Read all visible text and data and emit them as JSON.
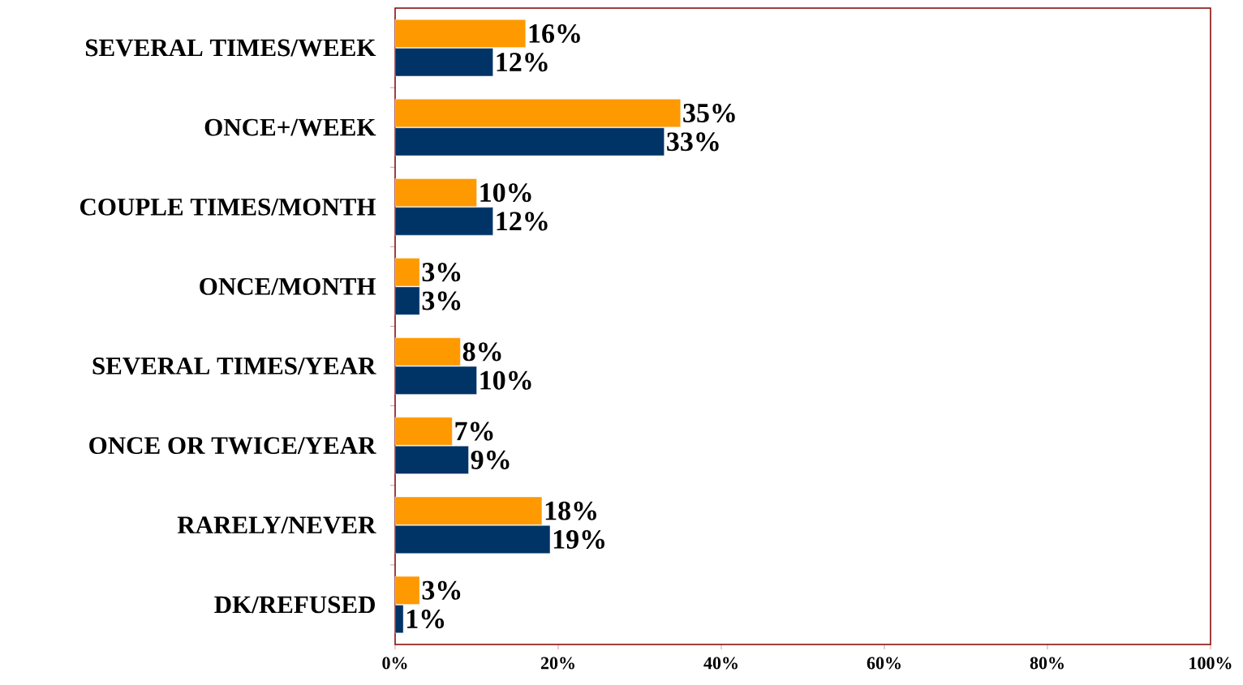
{
  "chart_data": {
    "type": "bar",
    "orientation": "horizontal",
    "categories": [
      "SEVERAL TIMES/WEEK",
      "ONCE+/WEEK",
      "COUPLE TIMES/MONTH",
      "ONCE/MONTH",
      "SEVERAL TIMES/YEAR",
      "ONCE OR TWICE/YEAR",
      "RARELY/NEVER",
      "DK/REFUSED"
    ],
    "series": [
      {
        "color": "#ff9900",
        "values": [
          16,
          35,
          10,
          3,
          8,
          7,
          18,
          3
        ],
        "value_labels": [
          "16%",
          "35%",
          "10%",
          "3%",
          "8%",
          "7%",
          "18%",
          "3%"
        ]
      },
      {
        "color": "#003366",
        "values": [
          12,
          33,
          12,
          3,
          10,
          9,
          19,
          1
        ],
        "value_labels": [
          "12%",
          "33%",
          "12%",
          "3%",
          "10%",
          "9%",
          "19%",
          "1%"
        ]
      }
    ],
    "xlim": [
      0,
      100
    ],
    "xticks": [
      {
        "value": 0,
        "label": "0%"
      },
      {
        "value": 20,
        "label": "20%"
      },
      {
        "value": 40,
        "label": "40%"
      },
      {
        "value": 60,
        "label": "60%"
      },
      {
        "value": 80,
        "label": "80%"
      },
      {
        "value": 100,
        "label": "100%"
      }
    ],
    "grid": false
  }
}
